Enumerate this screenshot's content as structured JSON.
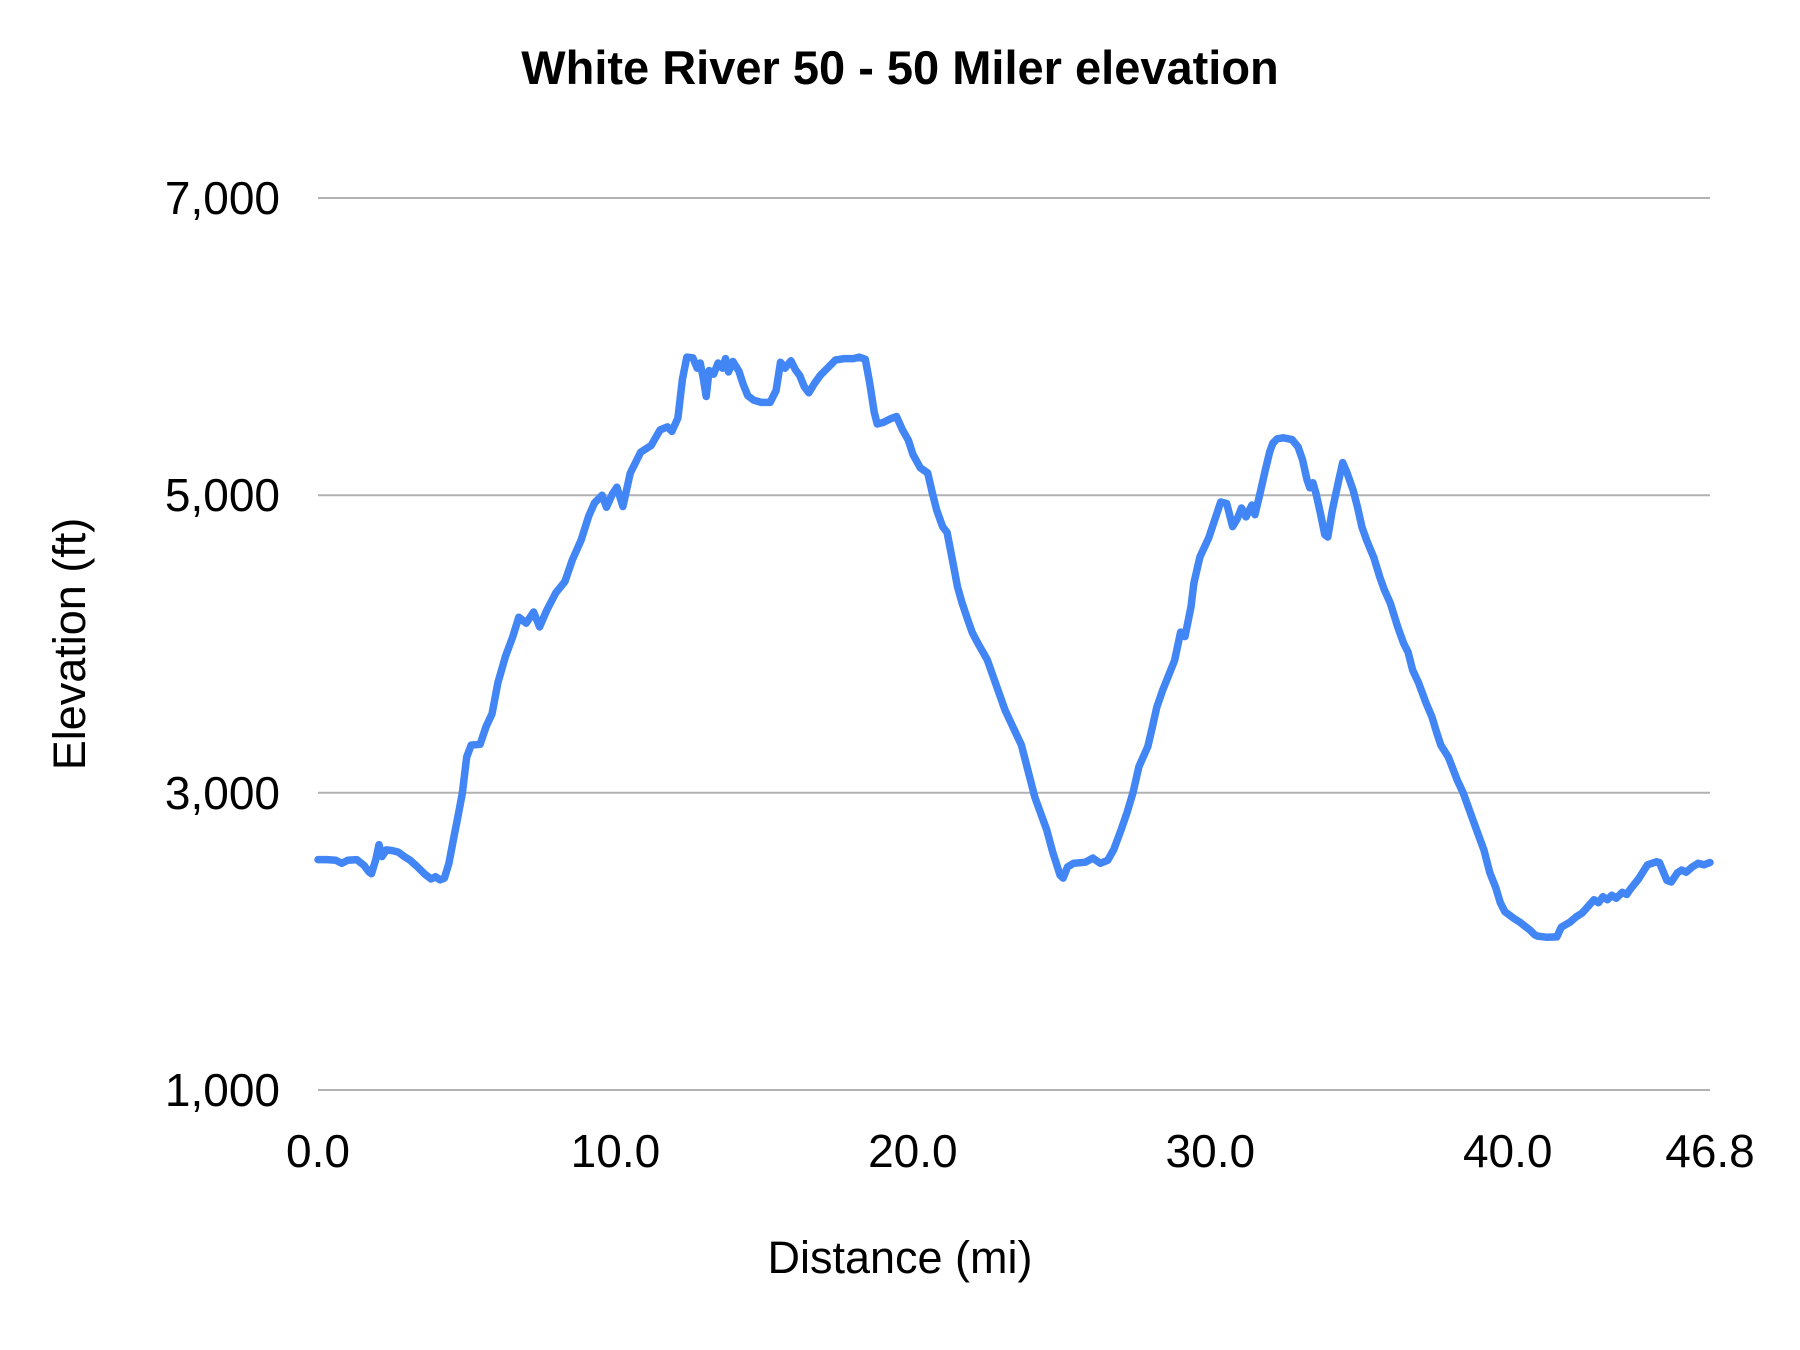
{
  "chart": {
    "title": "White River 50 - 50 Miler elevation",
    "x_axis": {
      "title": "Distance (mi)",
      "ticks": [
        {
          "label": "0.0",
          "value": 0
        },
        {
          "label": "10.0",
          "value": 10
        },
        {
          "label": "20.0",
          "value": 20
        },
        {
          "label": "30.0",
          "value": 30
        },
        {
          "label": "40.0",
          "value": 40
        },
        {
          "label": "46.8",
          "value": 46.8
        }
      ]
    },
    "y_axis": {
      "title": "Elevation (ft)",
      "ticks": [
        {
          "label": "1,000",
          "value": 1000
        },
        {
          "label": "3,000",
          "value": 3000
        },
        {
          "label": "5,000",
          "value": 5000
        },
        {
          "label": "7,000",
          "value": 7000
        }
      ]
    },
    "colors": {
      "line": "#4285f4",
      "grid": "#b2b2b2",
      "text": "#000000",
      "background": "#ffffff"
    }
  },
  "chart_data": {
    "type": "line",
    "title": "White River 50 - 50 Miler elevation",
    "xlabel": "Distance (mi)",
    "ylabel": "Elevation (ft)",
    "xlim": [
      0,
      46.8
    ],
    "ylim": [
      1000,
      7000
    ],
    "x_ticks": [
      0,
      10,
      20,
      30,
      40,
      46.8
    ],
    "y_ticks": [
      1000,
      3000,
      5000,
      7000
    ],
    "grid": "horizontal-only",
    "legend": "none",
    "series": [
      {
        "name": "Elevation",
        "color": "#4285f4",
        "points": [
          [
            0.0,
            2550
          ],
          [
            0.3,
            2550
          ],
          [
            0.6,
            2545
          ],
          [
            0.8,
            2525
          ],
          [
            1.0,
            2545
          ],
          [
            1.3,
            2550
          ],
          [
            1.55,
            2510
          ],
          [
            1.7,
            2470
          ],
          [
            1.8,
            2455
          ],
          [
            1.95,
            2555
          ],
          [
            2.05,
            2650
          ],
          [
            2.15,
            2570
          ],
          [
            2.3,
            2615
          ],
          [
            2.5,
            2610
          ],
          [
            2.7,
            2600
          ],
          [
            2.9,
            2570
          ],
          [
            3.1,
            2545
          ],
          [
            3.35,
            2500
          ],
          [
            3.6,
            2450
          ],
          [
            3.8,
            2420
          ],
          [
            3.95,
            2435
          ],
          [
            4.1,
            2413
          ],
          [
            4.25,
            2425
          ],
          [
            4.4,
            2525
          ],
          [
            4.55,
            2680
          ],
          [
            4.7,
            2835
          ],
          [
            4.85,
            2995
          ],
          [
            5.0,
            3240
          ],
          [
            5.15,
            3320
          ],
          [
            5.45,
            3325
          ],
          [
            5.65,
            3445
          ],
          [
            5.85,
            3530
          ],
          [
            6.05,
            3740
          ],
          [
            6.3,
            3915
          ],
          [
            6.55,
            4050
          ],
          [
            6.75,
            4180
          ],
          [
            7.0,
            4140
          ],
          [
            7.25,
            4215
          ],
          [
            7.45,
            4115
          ],
          [
            7.7,
            4230
          ],
          [
            8.0,
            4345
          ],
          [
            8.3,
            4420
          ],
          [
            8.55,
            4565
          ],
          [
            8.85,
            4700
          ],
          [
            9.1,
            4860
          ],
          [
            9.3,
            4950
          ],
          [
            9.55,
            5000
          ],
          [
            9.7,
            4920
          ],
          [
            9.9,
            5010
          ],
          [
            10.05,
            5055
          ],
          [
            10.25,
            4925
          ],
          [
            10.5,
            5150
          ],
          [
            10.85,
            5290
          ],
          [
            11.2,
            5335
          ],
          [
            11.5,
            5440
          ],
          [
            11.75,
            5460
          ],
          [
            11.9,
            5430
          ],
          [
            12.1,
            5520
          ],
          [
            12.25,
            5780
          ],
          [
            12.4,
            5930
          ],
          [
            12.6,
            5925
          ],
          [
            12.75,
            5855
          ],
          [
            12.85,
            5890
          ],
          [
            12.95,
            5790
          ],
          [
            13.05,
            5665
          ],
          [
            13.15,
            5840
          ],
          [
            13.3,
            5815
          ],
          [
            13.45,
            5890
          ],
          [
            13.6,
            5855
          ],
          [
            13.7,
            5920
          ],
          [
            13.8,
            5830
          ],
          [
            13.95,
            5900
          ],
          [
            14.15,
            5835
          ],
          [
            14.3,
            5745
          ],
          [
            14.45,
            5670
          ],
          [
            14.65,
            5640
          ],
          [
            14.9,
            5625
          ],
          [
            15.2,
            5625
          ],
          [
            15.4,
            5705
          ],
          [
            15.55,
            5895
          ],
          [
            15.7,
            5855
          ],
          [
            15.9,
            5905
          ],
          [
            16.05,
            5845
          ],
          [
            16.2,
            5805
          ],
          [
            16.35,
            5730
          ],
          [
            16.5,
            5690
          ],
          [
            16.7,
            5755
          ],
          [
            16.9,
            5810
          ],
          [
            17.15,
            5860
          ],
          [
            17.4,
            5910
          ],
          [
            17.7,
            5920
          ],
          [
            18.0,
            5920
          ],
          [
            18.2,
            5930
          ],
          [
            18.4,
            5915
          ],
          [
            18.55,
            5755
          ],
          [
            18.7,
            5560
          ],
          [
            18.8,
            5480
          ],
          [
            19.0,
            5490
          ],
          [
            19.25,
            5515
          ],
          [
            19.45,
            5530
          ],
          [
            19.65,
            5440
          ],
          [
            19.85,
            5370
          ],
          [
            20.0,
            5275
          ],
          [
            20.25,
            5185
          ],
          [
            20.5,
            5150
          ],
          [
            20.65,
            5020
          ],
          [
            20.8,
            4900
          ],
          [
            21.0,
            4790
          ],
          [
            21.15,
            4750
          ],
          [
            21.35,
            4545
          ],
          [
            21.5,
            4385
          ],
          [
            21.65,
            4280
          ],
          [
            21.85,
            4160
          ],
          [
            22.0,
            4075
          ],
          [
            22.2,
            4000
          ],
          [
            22.5,
            3895
          ],
          [
            23.1,
            3555
          ],
          [
            23.65,
            3320
          ],
          [
            23.95,
            3085
          ],
          [
            24.1,
            2970
          ],
          [
            24.5,
            2750
          ],
          [
            24.7,
            2600
          ],
          [
            24.95,
            2445
          ],
          [
            25.05,
            2425
          ],
          [
            25.2,
            2500
          ],
          [
            25.4,
            2525
          ],
          [
            25.8,
            2532
          ],
          [
            26.05,
            2560
          ],
          [
            26.3,
            2525
          ],
          [
            26.55,
            2545
          ],
          [
            26.75,
            2615
          ],
          [
            27.0,
            2750
          ],
          [
            27.2,
            2865
          ],
          [
            27.4,
            3000
          ],
          [
            27.6,
            3175
          ],
          [
            27.9,
            3310
          ],
          [
            28.05,
            3440
          ],
          [
            28.2,
            3575
          ],
          [
            28.4,
            3690
          ],
          [
            28.6,
            3790
          ],
          [
            28.8,
            3890
          ],
          [
            29.0,
            4080
          ],
          [
            29.15,
            4050
          ],
          [
            29.35,
            4250
          ],
          [
            29.45,
            4410
          ],
          [
            29.65,
            4585
          ],
          [
            29.95,
            4715
          ],
          [
            30.35,
            4955
          ],
          [
            30.55,
            4945
          ],
          [
            30.75,
            4790
          ],
          [
            30.9,
            4840
          ],
          [
            31.05,
            4915
          ],
          [
            31.2,
            4855
          ],
          [
            31.4,
            4935
          ],
          [
            31.5,
            4870
          ],
          [
            31.65,
            4995
          ],
          [
            31.85,
            5170
          ],
          [
            32.0,
            5295
          ],
          [
            32.1,
            5350
          ],
          [
            32.25,
            5380
          ],
          [
            32.45,
            5387
          ],
          [
            32.75,
            5375
          ],
          [
            32.95,
            5325
          ],
          [
            33.1,
            5240
          ],
          [
            33.25,
            5105
          ],
          [
            33.35,
            5050
          ],
          [
            33.45,
            5085
          ],
          [
            33.55,
            5015
          ],
          [
            33.7,
            4880
          ],
          [
            33.85,
            4735
          ],
          [
            33.95,
            4720
          ],
          [
            34.1,
            4900
          ],
          [
            34.3,
            5085
          ],
          [
            34.45,
            5220
          ],
          [
            34.6,
            5150
          ],
          [
            34.8,
            5035
          ],
          [
            34.95,
            4920
          ],
          [
            35.1,
            4785
          ],
          [
            35.25,
            4700
          ],
          [
            35.5,
            4580
          ],
          [
            35.7,
            4450
          ],
          [
            35.85,
            4365
          ],
          [
            36.05,
            4275
          ],
          [
            36.3,
            4115
          ],
          [
            36.5,
            4005
          ],
          [
            36.65,
            3945
          ],
          [
            36.8,
            3825
          ],
          [
            37.0,
            3740
          ],
          [
            37.25,
            3605
          ],
          [
            37.45,
            3510
          ],
          [
            37.6,
            3410
          ],
          [
            37.75,
            3320
          ],
          [
            38.0,
            3240
          ],
          [
            38.3,
            3085
          ],
          [
            38.5,
            3000
          ],
          [
            38.95,
            2750
          ],
          [
            39.2,
            2615
          ],
          [
            39.4,
            2460
          ],
          [
            39.6,
            2360
          ],
          [
            39.75,
            2260
          ],
          [
            39.9,
            2200
          ],
          [
            40.2,
            2155
          ],
          [
            40.4,
            2130
          ],
          [
            40.75,
            2075
          ],
          [
            40.9,
            2045
          ],
          [
            41.0,
            2035
          ],
          [
            41.3,
            2028
          ],
          [
            41.65,
            2030
          ],
          [
            41.8,
            2095
          ],
          [
            42.1,
            2130
          ],
          [
            42.3,
            2165
          ],
          [
            42.5,
            2190
          ],
          [
            42.9,
            2280
          ],
          [
            43.05,
            2260
          ],
          [
            43.2,
            2300
          ],
          [
            43.35,
            2280
          ],
          [
            43.5,
            2310
          ],
          [
            43.65,
            2290
          ],
          [
            43.85,
            2330
          ],
          [
            44.0,
            2315
          ],
          [
            44.1,
            2345
          ],
          [
            44.4,
            2420
          ],
          [
            44.7,
            2515
          ],
          [
            45.0,
            2535
          ],
          [
            45.1,
            2530
          ],
          [
            45.35,
            2410
          ],
          [
            45.5,
            2400
          ],
          [
            45.7,
            2460
          ],
          [
            45.85,
            2480
          ],
          [
            46.0,
            2465
          ],
          [
            46.2,
            2500
          ],
          [
            46.4,
            2525
          ],
          [
            46.6,
            2515
          ],
          [
            46.8,
            2530
          ]
        ]
      }
    ]
  }
}
